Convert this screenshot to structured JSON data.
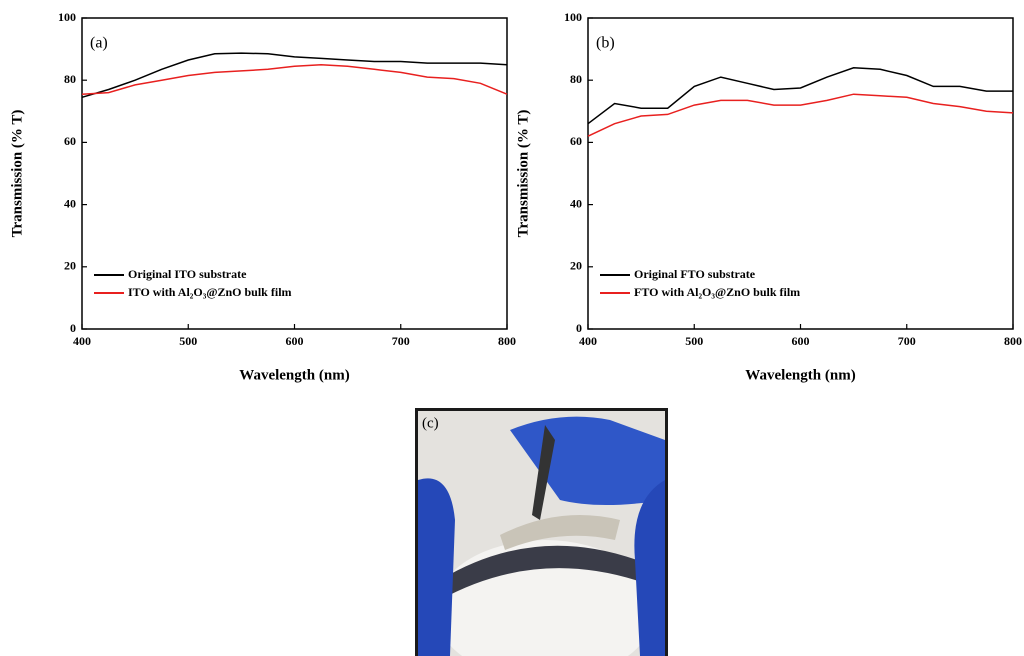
{
  "chart_data": [
    {
      "type": "line",
      "panel_label": "(a)",
      "xlabel": "Wavelength (nm)",
      "ylabel": "Transmission (% T)",
      "x": [
        400,
        425,
        450,
        475,
        500,
        525,
        550,
        575,
        600,
        625,
        650,
        675,
        700,
        725,
        750,
        775,
        800
      ],
      "series": [
        {
          "name": "Original ITO substrate",
          "color": "#000000",
          "values": [
            74.5,
            77,
            80,
            83.5,
            86.5,
            88.5,
            88.7,
            88.5,
            87.5,
            87,
            86.5,
            86,
            86,
            85.5,
            85.5,
            85.5,
            85
          ]
        },
        {
          "name": "ITO with Al₂O₃@ZnO bulk film",
          "color": "#e8201f",
          "values": [
            75.5,
            76,
            78.5,
            80,
            81.5,
            82.5,
            83,
            83.5,
            84.5,
            85,
            84.5,
            83.5,
            82.5,
            81,
            80.5,
            79,
            75.5
          ]
        }
      ],
      "xlim": [
        400,
        800
      ],
      "xticks": [
        400,
        500,
        600,
        700,
        800
      ],
      "ylim": [
        0,
        100
      ],
      "yticks": [
        0,
        20,
        40,
        60,
        80,
        100
      ],
      "legend": "lower left"
    },
    {
      "type": "line",
      "panel_label": "(b)",
      "xlabel": "Wavelength (nm)",
      "ylabel": "Transmission (% T)",
      "x": [
        400,
        425,
        450,
        475,
        500,
        525,
        550,
        575,
        600,
        625,
        650,
        675,
        700,
        725,
        750,
        775,
        800
      ],
      "series": [
        {
          "name": "Original FTO substrate",
          "color": "#000000",
          "values": [
            66,
            72.5,
            71,
            71,
            78,
            81,
            79,
            77,
            77.5,
            81,
            84,
            83.5,
            81.5,
            78,
            78,
            76.5,
            76.5
          ]
        },
        {
          "name": "FTO with Al₂O₃@ZnO bulk film",
          "color": "#e8201f",
          "values": [
            62,
            66,
            68.5,
            69,
            72,
            73.5,
            73.5,
            72,
            72,
            73.5,
            75.5,
            75,
            74.5,
            72.5,
            71.5,
            70,
            69.5
          ]
        }
      ],
      "xlim": [
        400,
        800
      ],
      "xticks": [
        400,
        500,
        600,
        700,
        800
      ],
      "ylim": [
        0,
        100
      ],
      "yticks": [
        0,
        20,
        40,
        60,
        80,
        100
      ],
      "legend": "lower left"
    }
  ],
  "photo": {
    "panel_label": "(c)"
  }
}
